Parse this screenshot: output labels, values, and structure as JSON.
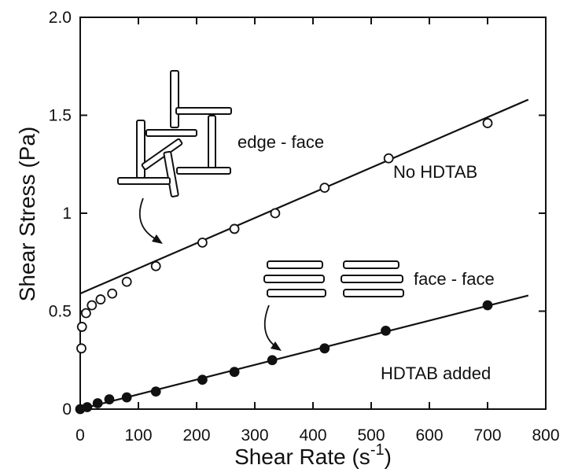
{
  "chart_data": {
    "type": "scatter",
    "xlabel": "Shear Rate (s",
    "xlabel_sup": "-1",
    "xlabel_close": ")",
    "ylabel": "Shear Stress (Pa)",
    "xlim": [
      0,
      800
    ],
    "ylim": [
      0,
      2.0
    ],
    "x_ticks": [
      0,
      100,
      200,
      300,
      400,
      500,
      600,
      700,
      800
    ],
    "x_tick_labels": [
      "0",
      "100",
      "200",
      "300",
      "400",
      "500",
      "600",
      "700",
      "800"
    ],
    "y_ticks": [
      0,
      0.5,
      1,
      1.5,
      2.0
    ],
    "y_tick_labels": [
      "0",
      "0.5",
      "1",
      "1.5",
      "2.0"
    ],
    "grid": false,
    "series": [
      {
        "name": "No HDTAB",
        "marker": "open-circle",
        "x": [
          2,
          3,
          10,
          20,
          35,
          55,
          80,
          130,
          210,
          265,
          335,
          420,
          530,
          700
        ],
        "y": [
          0.31,
          0.42,
          0.49,
          0.53,
          0.56,
          0.59,
          0.65,
          0.73,
          0.85,
          0.92,
          1.0,
          1.13,
          1.28,
          1.46
        ],
        "fit": {
          "x": [
            0,
            770
          ],
          "y": [
            0.59,
            1.58
          ]
        }
      },
      {
        "name": "HDTAB added",
        "marker": "filled-circle",
        "x": [
          0,
          12,
          30,
          50,
          80,
          130,
          210,
          265,
          330,
          420,
          525,
          700
        ],
        "y": [
          0.0,
          0.01,
          0.03,
          0.05,
          0.06,
          0.09,
          0.15,
          0.19,
          0.25,
          0.31,
          0.4,
          0.53
        ],
        "fit": {
          "x": [
            0,
            770
          ],
          "y": [
            0.0,
            0.58
          ]
        }
      }
    ],
    "annotations": {
      "edge_face": "edge - face",
      "no_hdtab": "No HDTAB",
      "face_face": "face - face",
      "hdtab_added": "HDTAB added"
    }
  },
  "colors": {
    "ink": "#111111",
    "background": "#ffffff"
  }
}
